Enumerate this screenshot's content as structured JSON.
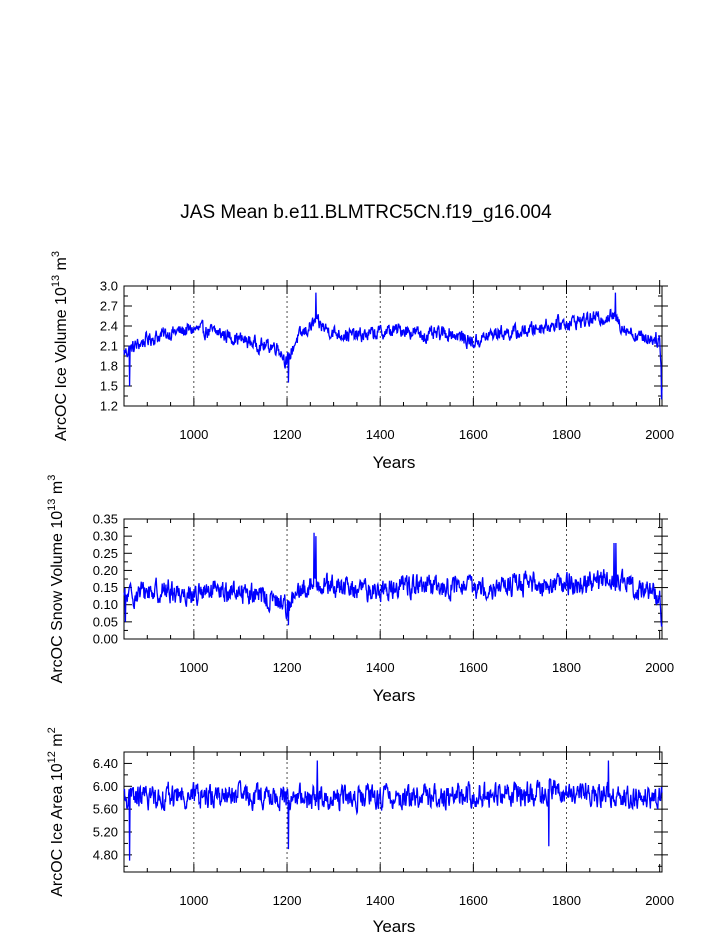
{
  "title": "JAS Mean b.e11.BLMTRC5CN.f19_g16.004",
  "series_color": "#0000ff",
  "chart_data": [
    {
      "type": "line",
      "ylabel": "ArcOC Ice Volume 10",
      "ylabel_exp": "13",
      "ylabel_unit": " m",
      "ylabel_unit_exp": "3",
      "xlabel": "Years",
      "xlim": [
        850,
        2005
      ],
      "ylim": [
        1.2,
        3.0
      ],
      "xticks": [
        1000,
        1200,
        1400,
        1600,
        1800,
        2000
      ],
      "yticks": [
        1.2,
        1.5,
        1.8,
        2.1,
        2.4,
        2.7,
        3.0
      ],
      "ytick_labels": [
        "1.2",
        "1.5",
        "1.8",
        "2.1",
        "2.4",
        "2.7",
        "3.0"
      ],
      "vgrid": [
        1000,
        1200,
        1400,
        1600,
        1800
      ],
      "anchors": [
        [
          850,
          2.0
        ],
        [
          900,
          2.2
        ],
        [
          950,
          2.3
        ],
        [
          1000,
          2.35
        ],
        [
          1050,
          2.3
        ],
        [
          1100,
          2.2
        ],
        [
          1150,
          2.1
        ],
        [
          1180,
          2.1
        ],
        [
          1200,
          1.85
        ],
        [
          1220,
          2.2
        ],
        [
          1260,
          2.45
        ],
        [
          1300,
          2.3
        ],
        [
          1350,
          2.25
        ],
        [
          1400,
          2.3
        ],
        [
          1450,
          2.35
        ],
        [
          1500,
          2.25
        ],
        [
          1550,
          2.3
        ],
        [
          1600,
          2.15
        ],
        [
          1650,
          2.3
        ],
        [
          1700,
          2.3
        ],
        [
          1750,
          2.4
        ],
        [
          1800,
          2.45
        ],
        [
          1850,
          2.5
        ],
        [
          1900,
          2.55
        ],
        [
          1920,
          2.4
        ],
        [
          1950,
          2.25
        ],
        [
          2000,
          2.2
        ],
        [
          2005,
          1.5
        ]
      ],
      "noise": 0.17,
      "spikes": [
        [
          862,
          1.5
        ],
        [
          1203,
          1.55
        ],
        [
          1262,
          2.9
        ],
        [
          1905,
          2.9
        ],
        [
          2004,
          1.3
        ]
      ]
    },
    {
      "type": "line",
      "ylabel": "ArcOC Snow Volume 10",
      "ylabel_exp": "13",
      "ylabel_unit": " m",
      "ylabel_unit_exp": "3",
      "xlabel": "Years",
      "xlim": [
        850,
        2005
      ],
      "ylim": [
        0.0,
        0.35
      ],
      "xticks": [
        1000,
        1200,
        1400,
        1600,
        1800,
        2000
      ],
      "yticks": [
        0.0,
        0.05,
        0.1,
        0.15,
        0.2,
        0.25,
        0.3,
        0.35
      ],
      "ytick_labels": [
        "0.00",
        "0.05",
        "0.10",
        "0.15",
        "0.20",
        "0.25",
        "0.30",
        "0.35"
      ],
      "vgrid": [
        1000,
        1200,
        1400,
        1600,
        1800
      ],
      "anchors": [
        [
          850,
          0.12
        ],
        [
          900,
          0.14
        ],
        [
          950,
          0.14
        ],
        [
          1000,
          0.13
        ],
        [
          1100,
          0.14
        ],
        [
          1200,
          0.1
        ],
        [
          1260,
          0.17
        ],
        [
          1300,
          0.15
        ],
        [
          1400,
          0.14
        ],
        [
          1450,
          0.16
        ],
        [
          1500,
          0.15
        ],
        [
          1600,
          0.15
        ],
        [
          1700,
          0.16
        ],
        [
          1800,
          0.16
        ],
        [
          1900,
          0.17
        ],
        [
          1950,
          0.15
        ],
        [
          2000,
          0.13
        ],
        [
          2005,
          0.03
        ]
      ],
      "noise": 0.05,
      "spikes": [
        [
          853,
          0.05
        ],
        [
          1203,
          0.04
        ],
        [
          1258,
          0.31
        ],
        [
          1262,
          0.3
        ],
        [
          1902,
          0.28
        ],
        [
          1906,
          0.28
        ]
      ]
    },
    {
      "type": "line",
      "ylabel": "ArcOC Ice Area 10",
      "ylabel_exp": "12",
      "ylabel_unit": " m",
      "ylabel_unit_exp": "2",
      "xlabel": "Years",
      "xlim": [
        850,
        2005
      ],
      "ylim": [
        4.5,
        6.6
      ],
      "xticks": [
        1000,
        1200,
        1400,
        1600,
        1800,
        2000
      ],
      "yticks": [
        4.8,
        5.2,
        5.6,
        6.0,
        6.4
      ],
      "ytick_labels": [
        "4.80",
        "5.20",
        "5.60",
        "6.00",
        "6.40"
      ],
      "vgrid": [
        1000,
        1200,
        1400,
        1600,
        1800
      ],
      "anchors": [
        [
          850,
          5.8
        ],
        [
          1000,
          5.85
        ],
        [
          1200,
          5.8
        ],
        [
          1400,
          5.8
        ],
        [
          1600,
          5.85
        ],
        [
          1800,
          5.9
        ],
        [
          2005,
          5.8
        ]
      ],
      "noise": 0.32,
      "spikes": [
        [
          862,
          4.7
        ],
        [
          1203,
          4.9
        ],
        [
          1762,
          4.95
        ],
        [
          1265,
          6.45
        ],
        [
          1890,
          6.45
        ]
      ]
    }
  ]
}
